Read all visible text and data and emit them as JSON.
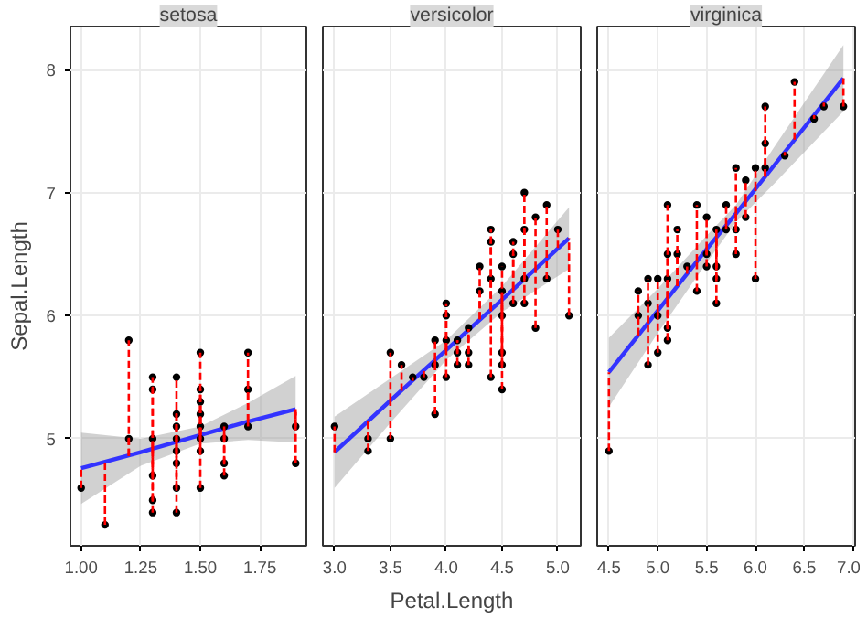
{
  "chart_data": [
    {
      "type": "scatter",
      "title": "setosa",
      "ylabel": "Sepal.Length",
      "xlim": [
        0.955,
        1.945
      ],
      "ylim": [
        4.13,
        8.35
      ],
      "xticks": [
        {
          "value": 1.0,
          "label": "1.00"
        },
        1.25,
        {
          "value": 1.5,
          "label": "1.50"
        },
        1.75
      ],
      "yticks": [
        5,
        6,
        7,
        8
      ],
      "grid": true,
      "series": [
        {
          "color": "#000000",
          "marker": "circle",
          "x": [
            1.0,
            1.1,
            1.2,
            1.2,
            1.3,
            1.3,
            1.3,
            1.3,
            1.3,
            1.3,
            1.4,
            1.4,
            1.4,
            1.4,
            1.4,
            1.4,
            1.4,
            1.4,
            1.5,
            1.5,
            1.5,
            1.5,
            1.5,
            1.5,
            1.5,
            1.5,
            1.6,
            1.6,
            1.6,
            1.6,
            1.7,
            1.7,
            1.7,
            1.9,
            1.9
          ],
          "values": [
            4.6,
            4.3,
            5.8,
            5.0,
            4.7,
            5.4,
            5.5,
            4.4,
            5.0,
            4.5,
            5.1,
            4.9,
            5.0,
            4.6,
            4.4,
            4.8,
            5.2,
            5.5,
            4.6,
            5.0,
            4.9,
            5.4,
            5.7,
            5.1,
            5.2,
            5.3,
            4.8,
            5.0,
            4.7,
            5.1,
            5.4,
            5.7,
            5.1,
            4.8,
            5.1
          ],
          "errors": [
            [
              4.6,
              4.76
            ],
            [
              4.3,
              4.81
            ],
            [
              4.86,
              5.8
            ],
            [
              4.86,
              5.0
            ],
            [
              4.7,
              4.92
            ],
            [
              4.92,
              5.4
            ],
            [
              4.92,
              5.5
            ],
            [
              4.4,
              4.92
            ],
            [
              4.92,
              5.0
            ],
            [
              4.5,
              4.92
            ],
            [
              4.97,
              5.1
            ],
            [
              4.9,
              4.97
            ],
            [
              4.97,
              5.0
            ],
            [
              4.6,
              4.97
            ],
            [
              4.4,
              4.97
            ],
            [
              4.8,
              4.97
            ],
            [
              4.97,
              5.2
            ],
            [
              4.97,
              5.5
            ],
            [
              4.6,
              5.03
            ],
            [
              5.0,
              5.03
            ],
            [
              4.9,
              5.03
            ],
            [
              5.03,
              5.4
            ],
            [
              5.03,
              5.7
            ],
            [
              5.03,
              5.1
            ],
            [
              5.03,
              5.2
            ],
            [
              5.03,
              5.3
            ],
            [
              4.8,
              5.08
            ],
            [
              5.0,
              5.08
            ],
            [
              4.7,
              5.08
            ],
            [
              5.08,
              5.1
            ],
            [
              5.14,
              5.4
            ],
            [
              5.14,
              5.7
            ],
            [
              5.1,
              5.14
            ],
            [
              4.8,
              5.24
            ],
            [
              5.1,
              5.24
            ]
          ]
        },
        {
          "type": "line",
          "marker": "none",
          "color": "#3333ff",
          "x": [
            1.0,
            1.25,
            1.5,
            1.7,
            1.9
          ],
          "values": [
            4.76,
            4.89,
            5.03,
            5.14,
            5.24
          ],
          "lower": [
            4.47,
            4.78,
            4.96,
            4.99,
            4.97
          ],
          "upper": [
            5.05,
            5.0,
            5.1,
            5.29,
            5.51
          ]
        }
      ]
    },
    {
      "type": "scatter",
      "title": "versicolor",
      "xlabel": "Petal.Length",
      "xlim": [
        2.895,
        5.205
      ],
      "ylim": [
        4.13,
        8.35
      ],
      "xticks": [
        {
          "value": 3.0,
          "label": "3.0"
        },
        3.5,
        {
          "value": 4.0,
          "label": "4.0"
        },
        4.5,
        {
          "value": 5.0,
          "label": "5.0"
        }
      ],
      "yticks": [
        5,
        6,
        7,
        8
      ],
      "grid": true,
      "tick_labels": "x",
      "series": [
        {
          "color": "#000000",
          "marker": "circle",
          "x": [
            3.0,
            3.3,
            3.3,
            3.5,
            3.5,
            3.6,
            3.7,
            3.8,
            3.9,
            3.9,
            3.9,
            4.0,
            4.0,
            4.0,
            4.0,
            4.1,
            4.1,
            4.1,
            4.2,
            4.2,
            4.2,
            4.3,
            4.3,
            4.4,
            4.4,
            4.4,
            4.4,
            4.5,
            4.5,
            4.5,
            4.5,
            4.5,
            4.5,
            4.6,
            4.6,
            4.6,
            4.7,
            4.7,
            4.7,
            4.7,
            4.8,
            4.8,
            4.9,
            4.9,
            5.0,
            5.1
          ],
          "values": [
            5.1,
            4.9,
            5.0,
            5.0,
            5.7,
            5.6,
            5.5,
            5.5,
            5.2,
            5.6,
            5.8,
            5.5,
            6.0,
            6.1,
            5.8,
            5.8,
            5.6,
            5.7,
            5.9,
            5.6,
            5.7,
            6.4,
            6.2,
            6.7,
            6.6,
            6.3,
            5.5,
            6.4,
            5.7,
            5.6,
            6.2,
            6.0,
            5.4,
            6.5,
            6.6,
            6.1,
            7.0,
            6.3,
            6.1,
            6.7,
            5.9,
            6.8,
            6.9,
            6.3,
            6.7,
            6.0
          ],
          "errors": [
            [
              4.89,
              5.1
            ],
            [
              4.9,
              5.14
            ],
            [
              5.0,
              5.14
            ],
            [
              5.0,
              5.31
            ],
            [
              5.31,
              5.7
            ],
            [
              5.39,
              5.6
            ],
            [
              5.47,
              5.5
            ],
            [
              5.5,
              5.55
            ],
            [
              5.2,
              5.64
            ],
            [
              5.6,
              5.64
            ],
            [
              5.64,
              5.8
            ],
            [
              5.5,
              5.72
            ],
            [
              5.72,
              6.0
            ],
            [
              5.72,
              6.1
            ],
            [
              5.72,
              5.8
            ],
            null,
            [
              5.6,
              5.8
            ],
            [
              5.7,
              5.8
            ],
            null,
            [
              5.6,
              5.89
            ],
            [
              5.7,
              5.89
            ],
            [
              5.97,
              6.4
            ],
            [
              5.97,
              6.2
            ],
            [
              6.05,
              6.7
            ],
            [
              6.05,
              6.6
            ],
            [
              6.05,
              6.3
            ],
            [
              5.5,
              6.05
            ],
            [
              6.13,
              6.4
            ],
            [
              5.7,
              6.13
            ],
            [
              5.6,
              6.13
            ],
            [
              6.13,
              6.2
            ],
            [
              6.0,
              6.13
            ],
            [
              5.4,
              6.13
            ],
            [
              6.22,
              6.5
            ],
            [
              6.22,
              6.6
            ],
            [
              6.1,
              6.22
            ],
            [
              6.3,
              7.0
            ],
            null,
            [
              6.1,
              6.3
            ],
            [
              6.3,
              6.7
            ],
            [
              5.9,
              6.38
            ],
            [
              6.38,
              6.8
            ],
            [
              6.47,
              6.9
            ],
            [
              6.3,
              6.47
            ],
            [
              6.55,
              6.7
            ],
            [
              6.0,
              6.63
            ]
          ]
        },
        {
          "type": "line",
          "marker": "none",
          "color": "#3333ff",
          "x": [
            3.0,
            3.5,
            4.0,
            4.5,
            5.1
          ],
          "values": [
            4.89,
            5.31,
            5.72,
            6.13,
            6.63
          ],
          "lower": [
            4.6,
            5.13,
            5.64,
            6.03,
            6.38
          ],
          "upper": [
            5.18,
            5.49,
            5.8,
            6.24,
            6.88
          ]
        }
      ]
    },
    {
      "type": "scatter",
      "title": "virginica",
      "xlim": [
        4.38,
        7.02
      ],
      "ylim": [
        4.13,
        8.35
      ],
      "xticks": [
        4.5,
        {
          "value": 5.0,
          "label": "5.0"
        },
        5.5,
        {
          "value": 6.0,
          "label": "6.0"
        },
        6.5,
        {
          "value": 7.0,
          "label": "7.0"
        }
      ],
      "yticks": [
        5,
        6,
        7,
        8
      ],
      "grid": true,
      "tick_labels": "x",
      "series": [
        {
          "color": "#000000",
          "marker": "circle",
          "x": [
            4.5,
            4.8,
            4.8,
            4.9,
            4.9,
            4.9,
            5.0,
            5.0,
            5.0,
            5.1,
            5.1,
            5.1,
            5.1,
            5.1,
            5.2,
            5.2,
            5.3,
            5.4,
            5.4,
            5.5,
            5.5,
            5.5,
            5.6,
            5.6,
            5.6,
            5.6,
            5.7,
            5.7,
            5.8,
            5.8,
            5.8,
            5.9,
            5.9,
            6.0,
            6.0,
            6.1,
            6.1,
            6.1,
            6.3,
            6.4,
            6.6,
            6.7,
            6.9
          ],
          "values": [
            4.9,
            6.2,
            6.0,
            5.6,
            6.3,
            6.1,
            5.7,
            6.0,
            6.3,
            5.8,
            6.5,
            6.3,
            6.9,
            5.9,
            6.7,
            6.5,
            6.4,
            6.9,
            6.2,
            6.8,
            6.5,
            6.4,
            6.3,
            6.4,
            6.1,
            6.7,
            6.9,
            6.7,
            6.5,
            6.7,
            7.2,
            7.1,
            6.8,
            6.3,
            7.2,
            7.2,
            7.4,
            7.7,
            7.3,
            7.9,
            7.6,
            7.7,
            7.7
          ],
          "errors": [
            [
              4.9,
              5.54
            ],
            [
              5.84,
              6.2
            ],
            [
              5.84,
              6.0
            ],
            [
              5.6,
              5.94
            ],
            [
              5.94,
              6.3
            ],
            [
              5.94,
              6.1
            ],
            [
              5.7,
              6.04
            ],
            [
              6.0,
              6.04
            ],
            [
              6.04,
              6.3
            ],
            [
              5.8,
              6.14
            ],
            [
              6.14,
              6.5
            ],
            [
              6.14,
              6.3
            ],
            [
              6.14,
              6.9
            ],
            [
              5.9,
              6.14
            ],
            [
              6.24,
              6.7
            ],
            [
              6.24,
              6.5
            ],
            [
              6.34,
              6.4
            ],
            [
              6.44,
              6.9
            ],
            [
              6.2,
              6.44
            ],
            [
              6.54,
              6.8
            ],
            [
              6.5,
              6.54
            ],
            [
              6.4,
              6.54
            ],
            [
              6.3,
              6.64
            ],
            [
              6.4,
              6.64
            ],
            [
              6.1,
              6.64
            ],
            [
              6.64,
              6.7
            ],
            [
              6.74,
              6.9
            ],
            [
              6.7,
              6.74
            ],
            [
              6.5,
              6.83
            ],
            [
              6.7,
              6.83
            ],
            [
              6.83,
              7.2
            ],
            [
              6.93,
              7.1
            ],
            [
              6.8,
              6.93
            ],
            [
              6.3,
              7.03
            ],
            [
              7.03,
              7.2
            ],
            [
              7.13,
              7.2
            ],
            [
              7.13,
              7.4
            ],
            [
              7.13,
              7.7
            ],
            [
              7.3,
              7.33
            ],
            [
              7.43,
              7.9
            ],
            [
              7.6,
              7.63
            ],
            [
              7.7,
              7.73
            ],
            [
              7.7,
              7.93
            ]
          ]
        },
        {
          "type": "line",
          "marker": "none",
          "color": "#3333ff",
          "x": [
            4.5,
            5.0,
            5.5,
            5.8,
            6.2,
            6.9
          ],
          "values": [
            5.54,
            6.04,
            6.54,
            6.83,
            7.23,
            7.93
          ],
          "lower": [
            5.26,
            5.86,
            6.43,
            6.76,
            7.08,
            7.66
          ],
          "upper": [
            5.82,
            6.22,
            6.65,
            6.9,
            7.38,
            8.2
          ]
        }
      ]
    }
  ]
}
